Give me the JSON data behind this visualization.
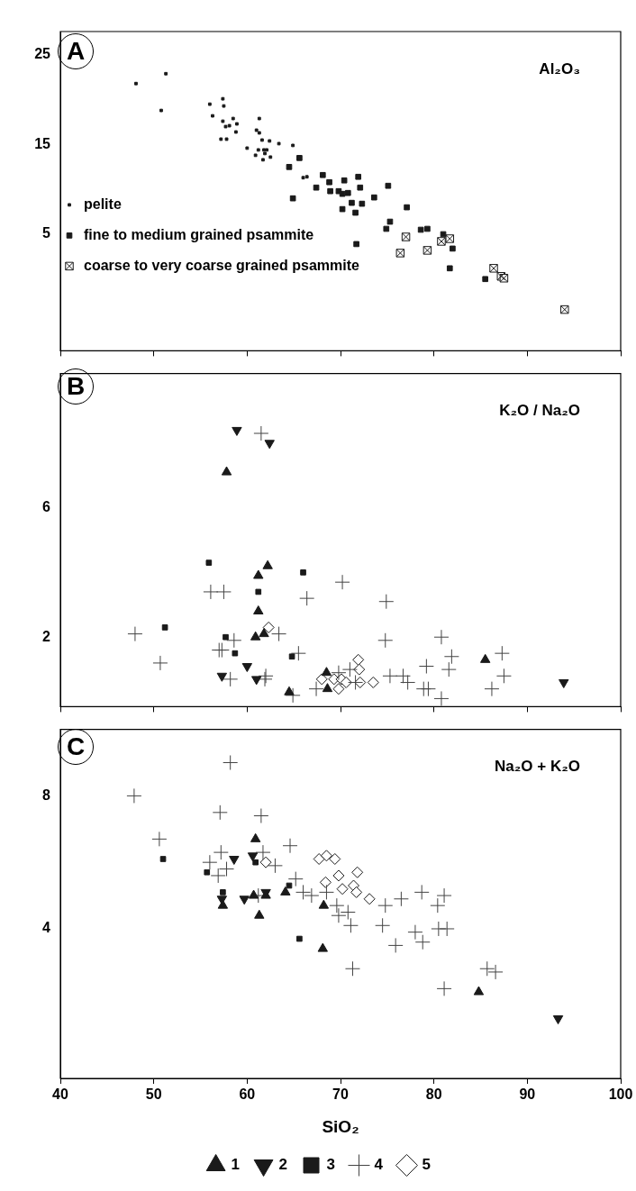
{
  "chart_data": [
    {
      "type": "scatter",
      "title": "A",
      "ylabel": "Al₂O₃",
      "xlim": [
        40,
        100
      ],
      "xticks": [
        40,
        50,
        60,
        70,
        80,
        90,
        100
      ],
      "ylim": [
        -8,
        27.6
      ],
      "yticks": [
        5,
        15,
        25
      ],
      "tick_labels": "y",
      "legend": "bottom left",
      "series": [
        {
          "name": "pelite",
          "marker": "square",
          "color": "#1a1a1a",
          "x": [
            48.1,
            51.3,
            50.8,
            56.0,
            57.4,
            57.5,
            56.3,
            57.4,
            58.5,
            57.7,
            58.1,
            58.9,
            58.8,
            57.2,
            57.8,
            61.3,
            61.0,
            61.3,
            61.6,
            62.4,
            63.4,
            64.9,
            60.0,
            61.2,
            61.8,
            62.1,
            60.9,
            61.9,
            61.7,
            62.5,
            66.0,
            66.4
          ],
          "values": [
            21.8,
            22.9,
            18.8,
            19.5,
            20.1,
            19.3,
            18.2,
            17.6,
            17.9,
            17.0,
            17.1,
            17.3,
            16.4,
            15.6,
            15.6,
            17.9,
            16.6,
            16.3,
            15.5,
            15.4,
            15.1,
            14.9,
            14.6,
            14.4,
            14.4,
            14.4,
            13.8,
            14.0,
            13.3,
            13.6,
            11.3,
            11.4
          ]
        },
        {
          "name": "fine to medium grained psammite",
          "marker": "square",
          "color": "#1a1a1a",
          "x": [
            65.6,
            64.5,
            64.9,
            68.1,
            67.4,
            68.8,
            68.9,
            69.8,
            70.4,
            70.2,
            70.8,
            71.2,
            70.2,
            71.6,
            71.9,
            72.1,
            72.3,
            73.6,
            75.1,
            77.1,
            75.3,
            74.9,
            78.6,
            79.3,
            81.0,
            82.0,
            81.7,
            71.7,
            85.5
          ],
          "values": [
            13.5,
            12.5,
            9.0,
            11.6,
            10.2,
            10.8,
            9.8,
            9.8,
            11.0,
            9.5,
            9.6,
            8.5,
            7.8,
            7.4,
            11.4,
            10.2,
            8.4,
            9.1,
            10.4,
            8.0,
            6.4,
            5.6,
            5.5,
            5.6,
            5.0,
            3.4,
            1.2,
            3.9,
            0.0
          ]
        },
        {
          "name": "coarse to very coarse grained psammite",
          "marker": "cross",
          "color": "#1a1a1a",
          "x": [
            77.0,
            76.4,
            79.3,
            80.8,
            81.7,
            86.4,
            87.2,
            87.5,
            94.0
          ],
          "values": [
            4.7,
            2.9,
            3.2,
            4.2,
            4.5,
            1.2,
            0.3,
            0.1,
            -3.4
          ]
        }
      ]
    },
    {
      "type": "scatter",
      "title": "B",
      "ylabel": "K₂O / Na₂O",
      "xlim": [
        40,
        100
      ],
      "xticks": [
        40,
        50,
        60,
        70,
        80,
        90,
        100
      ],
      "ylim": [
        -0.15,
        10.15
      ],
      "yticks": [
        2,
        6
      ],
      "tick_labels": "y",
      "series": [
        {
          "marker": "triangle",
          "color": "#1a1a1a",
          "x": [
            57.8,
            61.2,
            62.2,
            61.2,
            60.9,
            61.8,
            68.5,
            68.6,
            64.5,
            85.5
          ],
          "values": [
            7.1,
            3.9,
            4.2,
            2.8,
            2.0,
            2.1,
            0.9,
            0.4,
            0.3,
            1.3
          ]
        },
        {
          "marker": "triangle-down",
          "color": "#1a1a1a",
          "x": [
            58.9,
            62.4,
            60.0,
            57.3,
            61.0,
            93.9
          ],
          "values": [
            8.4,
            8.0,
            1.1,
            0.8,
            0.7,
            0.6
          ]
        },
        {
          "marker": "square",
          "color": "#1a1a1a",
          "x": [
            55.9,
            66.0,
            61.2,
            51.2,
            57.7,
            58.7,
            64.8
          ],
          "values": [
            4.3,
            4.0,
            3.4,
            2.3,
            2.0,
            1.5,
            1.4
          ]
        },
        {
          "marker": "cross",
          "color": "#444444",
          "x": [
            61.5,
            56.1,
            57.5,
            66.4,
            70.2,
            48.0,
            50.7,
            58.6,
            63.4,
            57.0,
            57.3,
            58.2,
            62.0,
            61.9,
            65.5,
            64.9,
            67.4,
            71.0,
            71.6,
            69.8,
            74.9,
            74.8,
            80.8,
            81.9,
            79.2,
            75.3,
            76.7,
            77.2,
            78.9,
            79.4,
            81.6,
            87.3,
            87.5,
            86.2,
            80.8
          ],
          "values": [
            8.3,
            3.4,
            3.4,
            3.2,
            3.7,
            2.1,
            1.2,
            1.9,
            2.1,
            1.6,
            1.6,
            0.7,
            0.8,
            0.7,
            1.5,
            0.2,
            0.4,
            1.0,
            0.6,
            0.9,
            3.1,
            1.9,
            2.0,
            1.4,
            1.1,
            0.8,
            0.8,
            0.6,
            0.4,
            0.4,
            1.0,
            1.5,
            0.8,
            0.4,
            0.1
          ]
        },
        {
          "marker": "diamond",
          "color": "#1a1a1a",
          "x": [
            62.3,
            71.9,
            72.0,
            68.0,
            69.3,
            70.1,
            70.6,
            69.8,
            72.1,
            73.5
          ],
          "values": [
            2.3,
            1.3,
            1.0,
            0.7,
            0.7,
            0.7,
            0.6,
            0.4,
            0.6,
            0.6
          ]
        }
      ]
    },
    {
      "type": "scatter",
      "title": "C",
      "ylabel": "Na₂O + K₂O",
      "xlabel": "SiO₂",
      "xlim": [
        40,
        100
      ],
      "xticks": [
        40,
        50,
        60,
        70,
        80,
        90,
        100
      ],
      "ylim": [
        -0.5,
        10
      ],
      "yticks": [
        4,
        8
      ],
      "legend": "bottom",
      "series": [
        {
          "name": "1",
          "marker": "triangle",
          "color": "#1a1a1a",
          "x": [
            60.9,
            57.4,
            60.7,
            62.0,
            61.3,
            64.1,
            68.2,
            68.1,
            84.8
          ],
          "values": [
            6.7,
            4.7,
            5.0,
            5.0,
            4.4,
            5.1,
            4.7,
            3.4,
            2.1
          ]
        },
        {
          "name": "2",
          "marker": "triangle-down",
          "color": "#1a1a1a",
          "x": [
            58.6,
            60.6,
            57.3,
            59.7,
            62.0,
            93.3
          ],
          "values": [
            6.1,
            6.2,
            4.9,
            4.9,
            5.1,
            1.3
          ]
        },
        {
          "name": "3",
          "marker": "square",
          "color": "#1a1a1a",
          "x": [
            60.9,
            55.7,
            57.4,
            64.5,
            65.6,
            51.0
          ],
          "values": [
            6.0,
            5.7,
            5.1,
            5.3,
            3.7,
            6.1
          ]
        },
        {
          "name": "4",
          "marker": "cross",
          "color": "#444444",
          "x": [
            58.2,
            47.9,
            57.1,
            61.5,
            50.6,
            57.2,
            61.7,
            64.6,
            56.0,
            57.8,
            63.0,
            56.9,
            65.2,
            66.0,
            66.9,
            68.5,
            61.2,
            69.6,
            69.8,
            70.8,
            71.1,
            71.3,
            74.8,
            76.5,
            78.7,
            80.4,
            81.1,
            74.5,
            78.0,
            78.8,
            75.9,
            80.5,
            81.4,
            85.7,
            86.6,
            81.1
          ],
          "values": [
            9.0,
            8.0,
            7.5,
            7.4,
            6.7,
            6.3,
            6.3,
            6.5,
            6.0,
            5.8,
            5.9,
            5.6,
            5.5,
            5.1,
            5.0,
            5.1,
            5.0,
            4.7,
            4.4,
            4.5,
            4.1,
            2.8,
            4.7,
            4.9,
            5.1,
            4.7,
            5.0,
            4.1,
            3.9,
            3.6,
            3.5,
            4.0,
            4.0,
            2.8,
            2.7,
            2.2
          ]
        },
        {
          "name": "5",
          "marker": "diamond",
          "color": "#1a1a1a",
          "x": [
            62.0,
            67.7,
            68.5,
            69.4,
            69.8,
            68.4,
            71.8,
            70.2,
            71.4,
            71.7,
            73.1
          ],
          "values": [
            6.0,
            6.1,
            6.2,
            6.1,
            5.6,
            5.4,
            5.7,
            5.2,
            5.3,
            5.1,
            4.9
          ]
        }
      ]
    }
  ]
}
